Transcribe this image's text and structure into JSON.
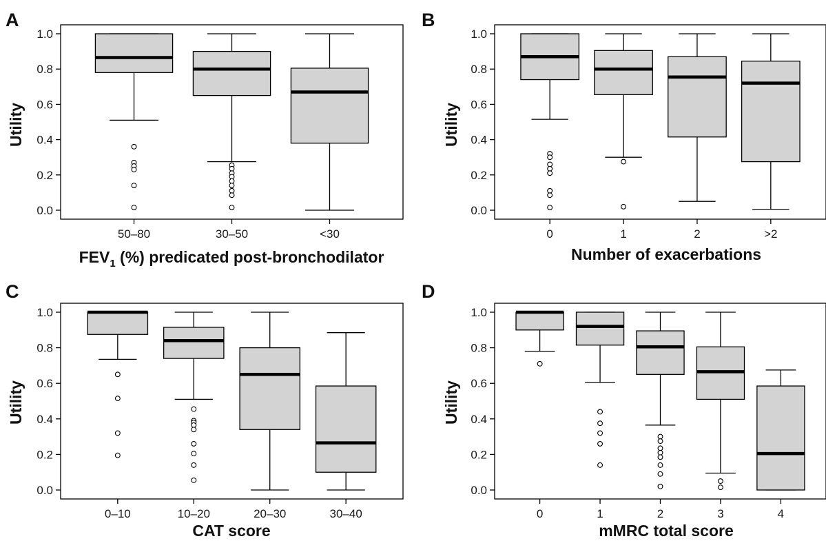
{
  "chart_data": [
    {
      "panel": "A",
      "type": "box",
      "ylabel": "Utility",
      "xlabel_main": "FEV",
      "xlabel_sub": "1",
      "xlabel_rest": " (%) predicated post-bronchodilator",
      "ylim": [
        0,
        1
      ],
      "yticks": [
        "0.0",
        "0.2",
        "0.4",
        "0.6",
        "0.8",
        "1.0"
      ],
      "categories": [
        "50–80",
        "30–50",
        "<30"
      ],
      "boxes": [
        {
          "q1": 0.78,
          "median": 0.865,
          "q3": 1.0,
          "whisker_low": 0.51,
          "whisker_high": 1.0,
          "outliers": [
            0.36,
            0.27,
            0.25,
            0.23,
            0.14,
            0.015
          ]
        },
        {
          "q1": 0.65,
          "median": 0.8,
          "q3": 0.9,
          "whisker_low": 0.275,
          "whisker_high": 1.0,
          "outliers": [
            0.255,
            0.235,
            0.21,
            0.19,
            0.165,
            0.14,
            0.11,
            0.085,
            0.015
          ]
        },
        {
          "q1": 0.38,
          "median": 0.67,
          "q3": 0.805,
          "whisker_low": 0.0,
          "whisker_high": 1.0,
          "outliers": []
        }
      ]
    },
    {
      "panel": "B",
      "type": "box",
      "ylabel": "Utility",
      "xlabel": "Number of exacerbations",
      "ylim": [
        0,
        1
      ],
      "yticks": [
        "0.0",
        "0.2",
        "0.4",
        "0.6",
        "0.8",
        "1.0"
      ],
      "categories": [
        "0",
        "1",
        "2",
        ">2"
      ],
      "boxes": [
        {
          "q1": 0.74,
          "median": 0.87,
          "q3": 1.0,
          "whisker_low": 0.515,
          "whisker_high": 1.0,
          "outliers": [
            0.32,
            0.3,
            0.26,
            0.235,
            0.21,
            0.11,
            0.085,
            0.015
          ]
        },
        {
          "q1": 0.655,
          "median": 0.8,
          "q3": 0.905,
          "whisker_low": 0.3,
          "whisker_high": 1.0,
          "outliers": [
            0.275,
            0.02
          ]
        },
        {
          "q1": 0.415,
          "median": 0.755,
          "q3": 0.87,
          "whisker_low": 0.05,
          "whisker_high": 1.0,
          "outliers": []
        },
        {
          "q1": 0.275,
          "median": 0.72,
          "q3": 0.845,
          "whisker_low": 0.005,
          "whisker_high": 1.0,
          "outliers": []
        }
      ]
    },
    {
      "panel": "C",
      "type": "box",
      "ylabel": "Utility",
      "xlabel": "CAT score",
      "ylim": [
        0,
        1
      ],
      "yticks": [
        "0.0",
        "0.2",
        "0.4",
        "0.6",
        "0.8",
        "1.0"
      ],
      "categories": [
        "0–10",
        "10–20",
        "20–30",
        "30–40"
      ],
      "boxes": [
        {
          "q1": 0.875,
          "median": 1.0,
          "q3": 1.0,
          "whisker_low": 0.735,
          "whisker_high": 1.0,
          "outliers": [
            0.65,
            0.515,
            0.32,
            0.195
          ]
        },
        {
          "q1": 0.74,
          "median": 0.84,
          "q3": 0.915,
          "whisker_low": 0.51,
          "whisker_high": 1.0,
          "outliers": [
            0.455,
            0.39,
            0.38,
            0.365,
            0.34,
            0.26,
            0.205,
            0.14,
            0.055
          ]
        },
        {
          "q1": 0.34,
          "median": 0.65,
          "q3": 0.8,
          "whisker_low": 0.0,
          "whisker_high": 1.0,
          "outliers": []
        },
        {
          "q1": 0.1,
          "median": 0.265,
          "q3": 0.585,
          "whisker_low": 0.0,
          "whisker_high": 0.885,
          "outliers": []
        }
      ]
    },
    {
      "panel": "D",
      "type": "box",
      "ylabel": "Utility",
      "xlabel": "mMRC total score",
      "ylim": [
        0,
        1
      ],
      "yticks": [
        "0.0",
        "0.2",
        "0.4",
        "0.6",
        "0.8",
        "1.0"
      ],
      "categories": [
        "0",
        "1",
        "2",
        "3",
        "4"
      ],
      "boxes": [
        {
          "q1": 0.9,
          "median": 1.0,
          "q3": 1.0,
          "whisker_low": 0.78,
          "whisker_high": 1.0,
          "outliers": [
            0.71
          ]
        },
        {
          "q1": 0.815,
          "median": 0.92,
          "q3": 1.0,
          "whisker_low": 0.605,
          "whisker_high": 1.0,
          "outliers": [
            0.44,
            0.375,
            0.32,
            0.26,
            0.14
          ]
        },
        {
          "q1": 0.65,
          "median": 0.805,
          "q3": 0.895,
          "whisker_low": 0.365,
          "whisker_high": 1.0,
          "outliers": [
            0.3,
            0.275,
            0.235,
            0.21,
            0.185,
            0.14,
            0.09,
            0.02
          ]
        },
        {
          "q1": 0.51,
          "median": 0.665,
          "q3": 0.805,
          "whisker_low": 0.095,
          "whisker_high": 1.0,
          "outliers": [
            0.05,
            0.015
          ]
        },
        {
          "q1": 0.0,
          "median": 0.205,
          "q3": 0.585,
          "whisker_low": 0.0,
          "whisker_high": 0.675,
          "outliers": []
        }
      ]
    }
  ]
}
